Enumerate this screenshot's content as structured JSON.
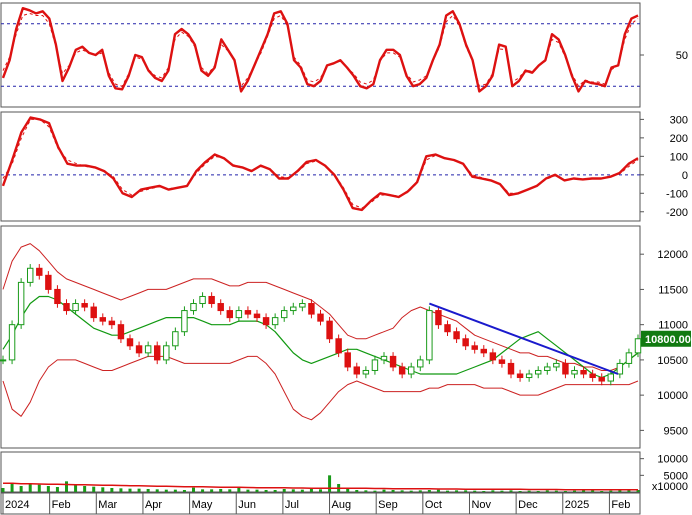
{
  "colors": {
    "frame": "#555555",
    "rsi_line": "#dd1111",
    "signal_line": "#dd1111",
    "guide_dash": "#2222aa",
    "candle_up": "#1a9a1a",
    "candle_down": "#dd1111",
    "band": "#cc2222",
    "ma_mid": "#119911",
    "trendline": "#1a1acc",
    "volume_bar": "#1a9a1a",
    "volume_ma": "#dd1111",
    "last_price_bg": "#117a11"
  },
  "chart_data": [
    {
      "type": "line",
      "panel": "oscillator-top",
      "yticks": [
        "50"
      ],
      "ylim": [
        0,
        100
      ],
      "guides": [
        20,
        80
      ],
      "series": [
        {
          "style": "solid",
          "values": [
            28,
            45,
            75,
            95,
            93,
            90,
            92,
            85,
            60,
            25,
            38,
            55,
            58,
            52,
            50,
            55,
            30,
            18,
            17,
            30,
            50,
            48,
            35,
            28,
            25,
            35,
            70,
            75,
            70,
            60,
            35,
            30,
            38,
            65,
            55,
            45,
            15,
            25,
            40,
            55,
            70,
            90,
            92,
            80,
            45,
            38,
            22,
            20,
            25,
            40,
            42,
            45,
            38,
            30,
            20,
            18,
            22,
            45,
            55,
            55,
            50,
            30,
            20,
            22,
            28,
            45,
            60,
            88,
            92,
            80,
            60,
            45,
            15,
            20,
            30,
            60,
            58,
            20,
            25,
            35,
            33,
            40,
            45,
            70,
            65,
            50,
            30,
            15,
            25,
            23,
            22,
            20,
            38,
            40,
            70,
            85,
            88
          ]
        },
        {
          "style": "dashed",
          "values": [
            35,
            48,
            70,
            88,
            90,
            88,
            88,
            80,
            58,
            32,
            40,
            52,
            55,
            52,
            50,
            52,
            33,
            22,
            20,
            32,
            48,
            46,
            36,
            30,
            28,
            38,
            65,
            72,
            68,
            58,
            38,
            32,
            40,
            60,
            54,
            44,
            20,
            28,
            40,
            52,
            68,
            85,
            88,
            78,
            48,
            40,
            26,
            24,
            28,
            40,
            42,
            44,
            38,
            32,
            24,
            22,
            26,
            44,
            52,
            52,
            48,
            32,
            24,
            26,
            30,
            44,
            58,
            82,
            88,
            78,
            58,
            44,
            20,
            22,
            32,
            56,
            55,
            24,
            28,
            36,
            34,
            40,
            44,
            65,
            62,
            48,
            32,
            20,
            26,
            24,
            24,
            22,
            36,
            40,
            65,
            80,
            85
          ]
        }
      ]
    },
    {
      "type": "line",
      "panel": "oscillator-middle",
      "yticks": [
        "300",
        "200",
        "100",
        "0",
        "-100",
        "-200"
      ],
      "ylim": [
        -250,
        340
      ],
      "guides": [
        0
      ],
      "series": [
        {
          "style": "solid",
          "values": [
            -60,
            80,
            230,
            310,
            300,
            280,
            150,
            60,
            50,
            50,
            40,
            20,
            -20,
            -100,
            -120,
            -80,
            -70,
            -60,
            -80,
            -70,
            -60,
            20,
            70,
            110,
            90,
            50,
            40,
            20,
            50,
            30,
            -20,
            -20,
            20,
            70,
            80,
            50,
            0,
            -80,
            -180,
            -190,
            -140,
            -100,
            -110,
            -120,
            -90,
            -40,
            100,
            110,
            90,
            80,
            60,
            -10,
            -20,
            -30,
            -50,
            -110,
            -100,
            -80,
            -60,
            -20,
            0,
            -30,
            -20,
            -25,
            -20,
            -20,
            -10,
            10,
            60,
            90
          ]
        },
        {
          "style": "dashed",
          "values": [
            -20,
            60,
            200,
            300,
            300,
            260,
            140,
            80,
            60,
            45,
            38,
            22,
            -10,
            -80,
            -110,
            -90,
            -75,
            -65,
            -75,
            -68,
            -60,
            10,
            60,
            100,
            90,
            55,
            42,
            25,
            45,
            32,
            -10,
            -15,
            15,
            60,
            75,
            52,
            5,
            -70,
            -160,
            -180,
            -150,
            -110,
            -108,
            -115,
            -95,
            -45,
            80,
            105,
            92,
            80,
            62,
            0,
            -15,
            -28,
            -48,
            -100,
            -100,
            -82,
            -62,
            -25,
            -5,
            -28,
            -22,
            -24,
            -20,
            -20,
            -12,
            5,
            45,
            80
          ]
        }
      ]
    },
    {
      "type": "candlestick",
      "panel": "price",
      "yticks": [
        "12000",
        "11500",
        "11000",
        "10500",
        "10000",
        "9500"
      ],
      "ylim": [
        9250,
        12400
      ],
      "last_price": "10800.00",
      "close": [
        10500,
        11000,
        11600,
        11800,
        11700,
        11500,
        11300,
        11200,
        11300,
        11250,
        11100,
        11050,
        11000,
        10800,
        10700,
        10600,
        10700,
        10500,
        10700,
        10900,
        11200,
        11300,
        11400,
        11300,
        11200,
        11100,
        11200,
        11150,
        11100,
        11000,
        11100,
        11200,
        11250,
        11300,
        11150,
        11050,
        10800,
        10600,
        10400,
        10300,
        10350,
        10500,
        10550,
        10400,
        10300,
        10400,
        10500,
        11200,
        11000,
        10900,
        10800,
        10700,
        10650,
        10600,
        10500,
        10450,
        10300,
        10250,
        10300,
        10350,
        10400,
        10450,
        10300,
        10350,
        10300,
        10250,
        10200,
        10300,
        10450,
        10600,
        10800
      ],
      "bands": {
        "upper": [
          11500,
          11900,
          12100,
          12150,
          12050,
          11900,
          11750,
          11650,
          11600,
          11550,
          11500,
          11450,
          11400,
          11350,
          11400,
          11450,
          11500,
          11500,
          11500,
          11550,
          11600,
          11650,
          11650,
          11650,
          11600,
          11550,
          11550,
          11600,
          11600,
          11600,
          11550,
          11500,
          11450,
          11400,
          11350,
          11250,
          11150,
          11000,
          10850,
          10800,
          10800,
          10850,
          10900,
          10950,
          11100,
          11200,
          11250,
          11200,
          11150,
          11100,
          11050,
          10950,
          10850,
          10800,
          10750,
          10700,
          10650,
          10600,
          10600,
          10550,
          10550,
          10500,
          10450,
          10450,
          10400,
          10400,
          10350,
          10350,
          10400,
          10500,
          10600
        ],
        "middle": [
          10650,
          10850,
          11100,
          11300,
          11400,
          11400,
          11350,
          11250,
          11150,
          11050,
          10950,
          10900,
          10850,
          10850,
          10900,
          10950,
          11000,
          11050,
          11100,
          11100,
          11100,
          11100,
          11050,
          11000,
          11000,
          11000,
          11050,
          11050,
          11050,
          11000,
          10900,
          10750,
          10600,
          10500,
          10450,
          10500,
          10550,
          10600,
          10650,
          10650,
          10600,
          10550,
          10500,
          10450,
          10400,
          10350,
          10300,
          10300,
          10300,
          10300,
          10300,
          10350,
          10400,
          10450,
          10500,
          10600,
          10700,
          10800,
          10850,
          10900,
          10800,
          10700,
          10600,
          10500,
          10400,
          10300,
          10250,
          10300,
          10400,
          10500,
          10600
        ],
        "lower": [
          10200,
          9800,
          9700,
          9900,
          10200,
          10400,
          10500,
          10500,
          10500,
          10450,
          10400,
          10350,
          10350,
          10400,
          10450,
          10500,
          10550,
          10550,
          10550,
          10500,
          10450,
          10450,
          10450,
          10450,
          10450,
          10450,
          10500,
          10550,
          10550,
          10450,
          10300,
          10050,
          9800,
          9700,
          9650,
          9750,
          9900,
          10050,
          10150,
          10200,
          10150,
          10100,
          10050,
          10050,
          10050,
          10050,
          10050,
          10100,
          10100,
          10150,
          10150,
          10150,
          10150,
          10100,
          10100,
          10100,
          10050,
          10000,
          10000,
          10000,
          10050,
          10100,
          10150,
          10150,
          10150,
          10150,
          10150,
          10150,
          10150,
          10150,
          10200
        ]
      },
      "trendline": [
        [
          11300,
          10300
        ]
      ]
    },
    {
      "type": "bar",
      "panel": "volume",
      "yticks": [
        "10000",
        "5000"
      ],
      "unit_label": "x10000",
      "ylim": [
        0,
        12000
      ],
      "values": [
        1200,
        2800,
        1800,
        2500,
        2200,
        1800,
        1500,
        3200,
        2200,
        1800,
        1600,
        1400,
        1200,
        1100,
        1000,
        1000,
        900,
        800,
        700,
        700,
        600,
        1300,
        800,
        800,
        900,
        800,
        1200,
        700,
        700,
        600,
        600,
        900,
        800,
        700,
        900,
        800,
        5000,
        2400,
        900,
        600,
        500,
        400,
        700,
        600,
        500,
        400,
        500,
        600,
        700,
        400,
        500,
        500,
        400,
        300,
        500,
        400,
        500,
        300,
        400,
        300,
        500,
        400,
        300,
        400,
        500,
        500,
        300,
        400,
        500,
        600,
        600
      ],
      "ma": [
        2600,
        2600,
        2500,
        2450,
        2400,
        2350,
        2300,
        2250,
        2200,
        2150,
        2100,
        2050,
        2000,
        1950,
        1900,
        1850,
        1800,
        1750,
        1700,
        1650,
        1600,
        1600,
        1550,
        1500,
        1450,
        1400,
        1400,
        1350,
        1300,
        1300,
        1250,
        1250,
        1200,
        1200,
        1150,
        1150,
        1150,
        1150,
        1100,
        1100,
        1100,
        1050,
        1050,
        1000,
        1000,
        1000,
        950,
        950,
        900,
        900,
        900,
        850,
        850,
        850,
        800,
        800,
        800,
        800,
        750,
        750,
        750,
        750,
        700,
        700,
        700,
        700,
        700,
        700,
        700,
        700,
        700
      ]
    }
  ],
  "x_axis": {
    "labels": [
      "2024",
      "Feb",
      "Mar",
      "Apr",
      "May",
      "Jun",
      "Jul",
      "Aug",
      "Sep",
      "Oct",
      "Nov",
      "Dec",
      "2025",
      "Feb"
    ]
  }
}
